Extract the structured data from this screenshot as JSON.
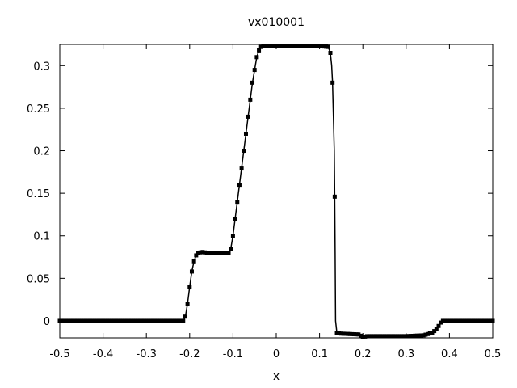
{
  "chart_data": {
    "type": "line",
    "title": "vx010001",
    "xlabel": "x",
    "ylabel": "",
    "xlim": [
      -0.5,
      0.5
    ],
    "ylim": [
      -0.02,
      0.325
    ],
    "grid": false,
    "legend": "none",
    "x_ticks": [
      "-0.5",
      "-0.4",
      "-0.3",
      "-0.2",
      "-0.1",
      "0",
      "0.1",
      "0.2",
      "0.3",
      "0.4",
      "0.5"
    ],
    "y_ticks": [
      "0",
      "0.05",
      "0.1",
      "0.15",
      "0.2",
      "0.25",
      "0.3"
    ],
    "series": [
      {
        "style": "line with square markers",
        "color": "#000000",
        "points": [
          [
            -0.5,
            0
          ],
          [
            -0.45,
            0
          ],
          [
            -0.4,
            0
          ],
          [
            -0.35,
            0
          ],
          [
            -0.3,
            0
          ],
          [
            -0.25,
            0
          ],
          [
            -0.215,
            0
          ],
          [
            -0.21,
            0.005
          ],
          [
            -0.205,
            0.02
          ],
          [
            -0.2,
            0.04
          ],
          [
            -0.195,
            0.058
          ],
          [
            -0.19,
            0.07
          ],
          [
            -0.185,
            0.077
          ],
          [
            -0.18,
            0.08
          ],
          [
            -0.17,
            0.081
          ],
          [
            -0.16,
            0.08
          ],
          [
            -0.14,
            0.08
          ],
          [
            -0.12,
            0.08
          ],
          [
            -0.11,
            0.08
          ],
          [
            -0.105,
            0.085
          ],
          [
            -0.1,
            0.1
          ],
          [
            -0.095,
            0.12
          ],
          [
            -0.09,
            0.14
          ],
          [
            -0.085,
            0.16
          ],
          [
            -0.08,
            0.18
          ],
          [
            -0.075,
            0.2
          ],
          [
            -0.07,
            0.22
          ],
          [
            -0.065,
            0.24
          ],
          [
            -0.06,
            0.26
          ],
          [
            -0.055,
            0.28
          ],
          [
            -0.05,
            0.295
          ],
          [
            -0.045,
            0.31
          ],
          [
            -0.04,
            0.318
          ],
          [
            -0.035,
            0.322
          ],
          [
            -0.03,
            0.323
          ],
          [
            0.0,
            0.323
          ],
          [
            0.05,
            0.323
          ],
          [
            0.1,
            0.323
          ],
          [
            0.12,
            0.322
          ],
          [
            0.125,
            0.315
          ],
          [
            0.128,
            0.3
          ],
          [
            0.13,
            0.28
          ],
          [
            0.132,
            0.24
          ],
          [
            0.134,
            0.2
          ],
          [
            0.135,
            0.146
          ],
          [
            0.136,
            0.08
          ],
          [
            0.137,
            0.0
          ],
          [
            0.14,
            -0.014
          ],
          [
            0.15,
            -0.015
          ],
          [
            0.19,
            -0.016
          ],
          [
            0.2,
            -0.019
          ],
          [
            0.21,
            -0.018
          ],
          [
            0.25,
            -0.018
          ],
          [
            0.3,
            -0.018
          ],
          [
            0.34,
            -0.017
          ],
          [
            0.36,
            -0.014
          ],
          [
            0.37,
            -0.01
          ],
          [
            0.375,
            -0.006
          ],
          [
            0.38,
            -0.002
          ],
          [
            0.385,
            0.0
          ],
          [
            0.4,
            0.0
          ],
          [
            0.45,
            0.0
          ],
          [
            0.5,
            0.0
          ]
        ]
      }
    ]
  }
}
